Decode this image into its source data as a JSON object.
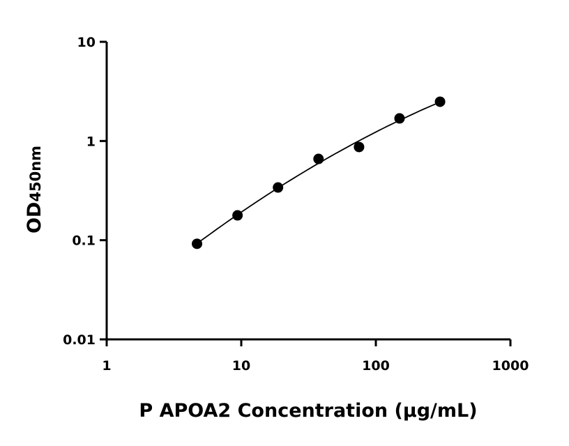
{
  "chart_data": {
    "type": "scatter",
    "title": "",
    "xlabel": "P APOA2 Concentration (µg/mL)",
    "ylabel_main": "OD",
    "ylabel_sub": "450nm",
    "xscale": "log",
    "yscale": "log",
    "xlim": [
      1,
      1000
    ],
    "ylim": [
      0.01,
      10
    ],
    "xticks": [
      "1",
      "10",
      "100",
      "1000"
    ],
    "yticks": [
      "0.01",
      "0.1",
      "1",
      "10"
    ],
    "grid": false,
    "x": [
      4.69,
      9.38,
      18.75,
      37.5,
      75,
      150,
      300
    ],
    "y": [
      0.092,
      0.178,
      0.34,
      0.66,
      0.87,
      1.69,
      2.49
    ],
    "fit_line": true,
    "marker_color": "#000000"
  }
}
